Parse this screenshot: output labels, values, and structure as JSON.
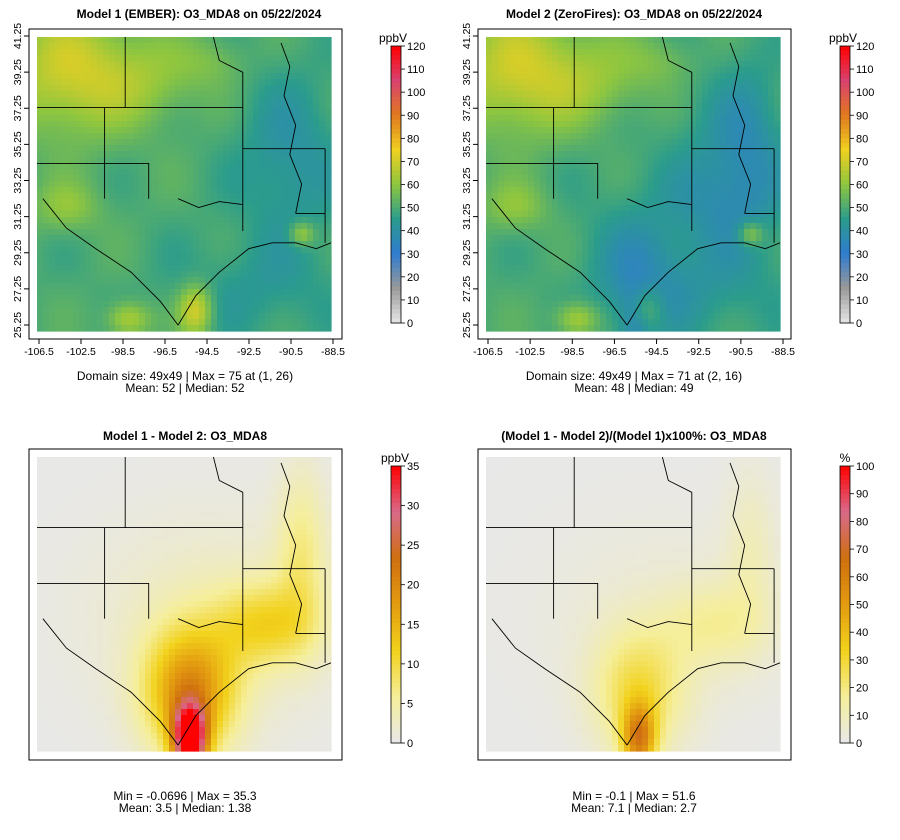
{
  "chart_data": [
    {
      "type": "heatmap",
      "title": "Model 1 (EMBER): O3_MDA8 on 05/22/2024",
      "x_ticks": [
        "-106.5",
        "-102.5",
        "-98.5",
        "-96.5",
        "-94.5",
        "-92.5",
        "-90.5",
        "-88.5"
      ],
      "y_ticks": [
        "25.25",
        "27.25",
        "29.25",
        "31.25",
        "33.25",
        "35.25",
        "37.25",
        "39.25",
        "41.25"
      ],
      "xlim": [
        -107,
        -88
      ],
      "ylim": [
        25,
        42
      ],
      "colorbar_unit": "ppbV",
      "colorbar_ticks": [
        "0",
        "10",
        "20",
        "30",
        "40",
        "50",
        "60",
        "70",
        "80",
        "90",
        "100",
        "110",
        "120"
      ],
      "colorbar_range": [
        0,
        120
      ],
      "stats_line1": "Domain size: 49x49 | Max = 75 at (1, 26)",
      "stats_line2": "Mean: 52 |  Median: 52",
      "mean": 52,
      "max": 75
    },
    {
      "type": "heatmap",
      "title": "Model 2 (ZeroFires): O3_MDA8 on 05/22/2024",
      "x_ticks": [
        "-106.5",
        "-102.5",
        "-98.5",
        "-96.5",
        "-94.5",
        "-92.5",
        "-90.5",
        "-88.5"
      ],
      "y_ticks": [
        "25.25",
        "27.25",
        "29.25",
        "31.25",
        "33.25",
        "35.25",
        "37.25",
        "39.25",
        "41.25"
      ],
      "xlim": [
        -107,
        -88
      ],
      "ylim": [
        25,
        42
      ],
      "colorbar_unit": "ppbV",
      "colorbar_ticks": [
        "0",
        "10",
        "20",
        "30",
        "40",
        "50",
        "60",
        "70",
        "80",
        "90",
        "100",
        "110",
        "120"
      ],
      "colorbar_range": [
        0,
        120
      ],
      "stats_line1": "Domain size: 49x49 | Max = 71 at (2, 16)",
      "stats_line2": "Mean: 48 |  Median: 49",
      "mean": 48,
      "max": 71
    },
    {
      "type": "heatmap",
      "title": "Model 1 - Model 2: O3_MDA8",
      "colorbar_unit": "ppbV",
      "colorbar_ticks": [
        "0",
        "5",
        "10",
        "15",
        "20",
        "25",
        "30",
        "35"
      ],
      "colorbar_range": [
        0,
        35
      ],
      "stats_line1": "Min = -0.0696 | Max = 35.3",
      "stats_line2": "Mean: 3.5 |  Median: 1.38",
      "min": -0.0696,
      "max": 35.3,
      "mean": 3.5,
      "median": 1.38
    },
    {
      "type": "heatmap",
      "title": "(Model 1 - Model 2)/(Model 1)x100%: O3_MDA8",
      "colorbar_unit": "%",
      "colorbar_ticks": [
        "0",
        "10",
        "20",
        "30",
        "40",
        "50",
        "60",
        "70",
        "80",
        "90",
        "100"
      ],
      "colorbar_range": [
        0,
        100
      ],
      "stats_line1": "Min = -0.1 | Max = 51.6",
      "stats_line2": "Mean: 7.1 |  Median: 2.7",
      "min": -0.1,
      "max": 51.6,
      "mean": 7.1,
      "median": 2.7
    }
  ],
  "colors": {
    "abs_scale": [
      "#e6e6e6",
      "#9a9a9a",
      "#2f7ccf",
      "#2b9c8c",
      "#8ec63f",
      "#f0d020",
      "#e07820",
      "#d9426f",
      "#ff0000"
    ],
    "diff_scale": [
      "#e8e8e8",
      "#f5ee9a",
      "#f2d21c",
      "#e39b10",
      "#cf6f10",
      "#d86a8a",
      "#ff0000"
    ]
  }
}
